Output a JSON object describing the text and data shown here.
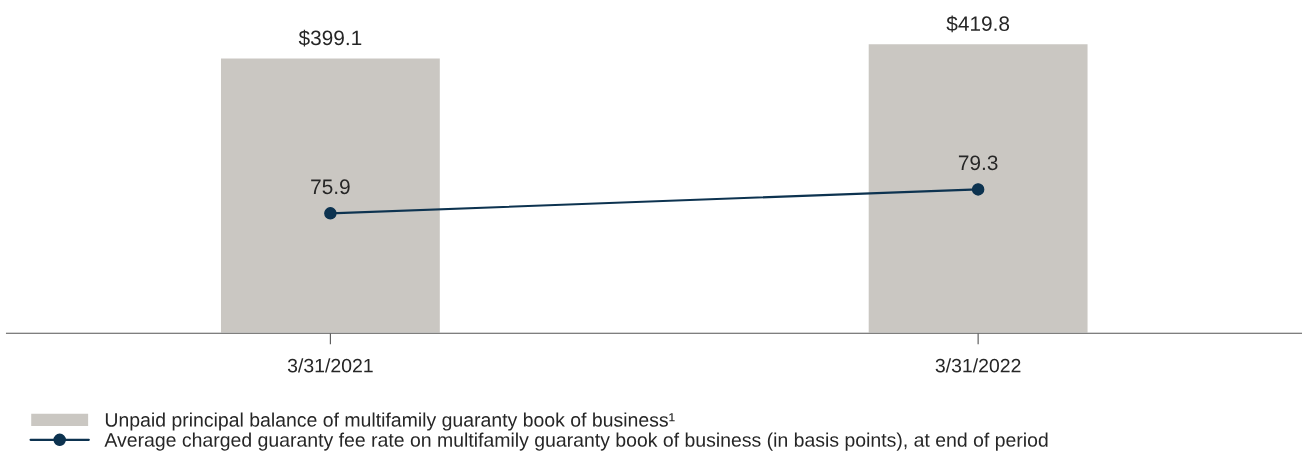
{
  "chart_data": {
    "type": "bar",
    "categories": [
      "3/31/2021",
      "3/31/2022"
    ],
    "series": [
      {
        "name": "Unpaid principal balance of multifamily guaranty book of business¹",
        "color": "#cac7c2",
        "values": [
          399.1,
          419.8
        ],
        "value_labels": [
          "$399.1",
          "$419.8"
        ]
      },
      {
        "name": "Average charged guaranty fee rate on multifamily guaranty book of business (in basis points), at end of period",
        "type": "line",
        "axis": "y2",
        "color": "#0d3350",
        "values": [
          75.9,
          79.3
        ],
        "value_labels": [
          "75.9",
          "79.3"
        ],
        "marker": "circle"
      }
    ],
    "tick_labels": "x",
    "grid": false,
    "legend": "bottom"
  }
}
